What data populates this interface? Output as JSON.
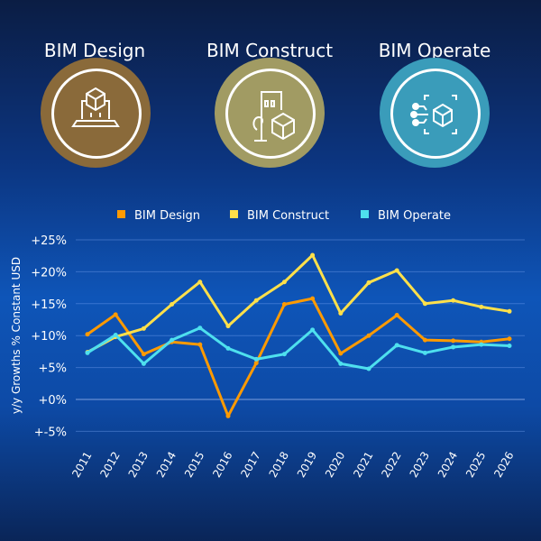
{
  "categories_header": [
    {
      "label": "BIM Design",
      "color": "#8a6a3a",
      "icon": "laptop-cube-icon"
    },
    {
      "label": "BIM Construct",
      "color": "#a19b63",
      "icon": "building-cube-icon"
    },
    {
      "label": "BIM Operate",
      "color": "#3a9cba",
      "icon": "network-cube-icon"
    }
  ],
  "chart_data": {
    "type": "line",
    "title": "",
    "xlabel": "",
    "ylabel": "y/y Growths % Constant USD",
    "x": [
      "2011",
      "2012",
      "2013",
      "2014",
      "2015",
      "2016",
      "2017",
      "2018",
      "2019",
      "2020",
      "2021",
      "2022",
      "2023",
      "2024",
      "2025",
      "2026"
    ],
    "yticks": [
      "+-5%",
      "+0%",
      "+5%",
      "+10%",
      "+15%",
      "+20%",
      "+25%"
    ],
    "ytick_values": [
      -5,
      0,
      5,
      10,
      15,
      20,
      25
    ],
    "ylim": [
      -5,
      25
    ],
    "grid": true,
    "legend": "top",
    "series": [
      {
        "name": "BIM Design",
        "color": "#ff9a00",
        "values": [
          10.2,
          13.3,
          7.1,
          9.0,
          8.6,
          -2.6,
          5.7,
          14.9,
          15.8,
          7.2,
          10.0,
          13.2,
          9.3,
          9.2,
          9.0,
          9.5
        ]
      },
      {
        "name": "BIM Construct",
        "color": "#ffe04a",
        "values": [
          7.4,
          9.8,
          11.1,
          14.9,
          18.4,
          11.5,
          15.5,
          18.4,
          22.6,
          13.5,
          18.3,
          20.2,
          15.0,
          15.5,
          14.5,
          13.8
        ]
      },
      {
        "name": "BIM Operate",
        "color": "#4ee0ee",
        "values": [
          7.3,
          10.1,
          5.6,
          9.3,
          11.2,
          8.0,
          6.3,
          7.1,
          10.9,
          5.6,
          4.8,
          8.5,
          7.3,
          8.2,
          8.6,
          8.4
        ]
      }
    ]
  }
}
